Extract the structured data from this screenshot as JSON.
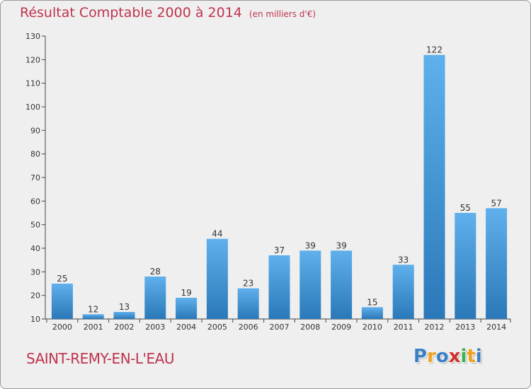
{
  "title": "Résultat Comptable 2000 à 2014",
  "title_unit": "(en milliers d'€)",
  "commune": "SAINT-REMY-EN-L'EAU",
  "logo": {
    "text": "Proxiti",
    "letters": [
      "P",
      "r",
      "o",
      "x",
      "i",
      "t",
      "i"
    ],
    "colors": [
      "#3b7fc4",
      "#f0a020",
      "#3b7fc4",
      "#d03030",
      "#3bb34a",
      "#f0a020",
      "#3b7fc4"
    ]
  },
  "colors": {
    "title": "#c0334d",
    "bar_top": "#5fb0ec",
    "bar_bottom": "#2a78b8",
    "background": "#efefef"
  },
  "chart_data": {
    "type": "bar",
    "title": "Résultat Comptable 2000 à 2014",
    "subtitle": "(en milliers d'€)",
    "xlabel": "",
    "ylabel": "",
    "categories": [
      "2000",
      "2001",
      "2002",
      "2003",
      "2004",
      "2005",
      "2006",
      "2007",
      "2008",
      "2009",
      "2010",
      "2011",
      "2012",
      "2013",
      "2014"
    ],
    "values": [
      25,
      12,
      13,
      28,
      19,
      44,
      23,
      37,
      39,
      39,
      15,
      33,
      122,
      55,
      57
    ],
    "ylim": [
      10,
      130
    ],
    "yticks": [
      10,
      20,
      30,
      40,
      50,
      60,
      70,
      80,
      90,
      100,
      110,
      120,
      130
    ],
    "grid": false,
    "legend": "none"
  }
}
